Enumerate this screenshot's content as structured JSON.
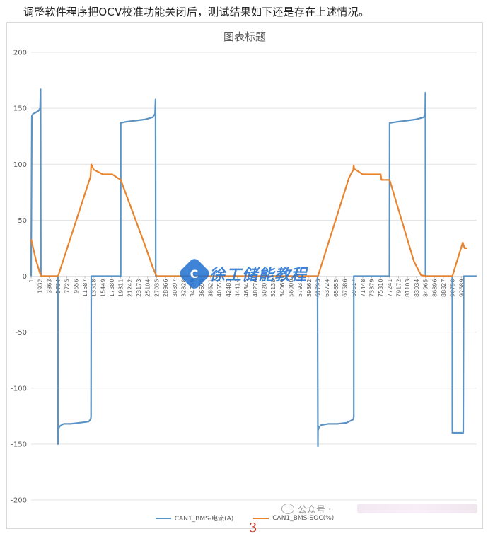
{
  "intro_text": "调整软件程序把OCV校准功能关闭后，测试结果如下还是存在上述情况。",
  "watermark": {
    "logo_glyph": "C",
    "text": "徐工储能教程"
  },
  "wechat": {
    "icon": "wechat-icon",
    "label": "公众号 ·"
  },
  "page_number": "3",
  "colors": {
    "current": "#5b93c4",
    "soc": "#e9842e",
    "grid": "#e3e3e3",
    "text": "#595959"
  },
  "chart_data": {
    "type": "line",
    "title": "图表标题",
    "ylim": [
      -200,
      200
    ],
    "yticks": [
      200,
      150,
      100,
      50,
      0,
      -50,
      -100,
      -150,
      -200
    ],
    "xlim": [
      1,
      96000
    ],
    "xtick_labels": [
      "1",
      "1932",
      "3863",
      "5794",
      "7725",
      "9656",
      "11587",
      "13518",
      "15449",
      "17380",
      "19311",
      "21242",
      "23173",
      "25104",
      "27035",
      "28966",
      "30897",
      "32828",
      "34759",
      "36690",
      "38621",
      "40552",
      "42483",
      "44414",
      "46345",
      "48276",
      "50207",
      "52138",
      "54069",
      "56000",
      "57931",
      "59862",
      "61793",
      "63724",
      "65655",
      "67586",
      "69517",
      "71448",
      "73379",
      "75310",
      "77241",
      "79172",
      "81103",
      "83034",
      "84965",
      "86896",
      "88827",
      "90758",
      "92689"
    ],
    "grid": true,
    "legend_position": "bottom",
    "series": [
      {
        "name": "CAN1_BMS-电流(A)",
        "color": "#5b93c4",
        "x": [
          1,
          150,
          400,
          900,
          1650,
          1930,
          2050,
          2100,
          5790,
          5800,
          5900,
          6200,
          7000,
          8500,
          10500,
          12400,
          12800,
          12900,
          12950,
          19300,
          19310,
          19400,
          20500,
          22500,
          24500,
          26200,
          26700,
          26800,
          26850,
          61700,
          61790,
          61800,
          62000,
          62500,
          64000,
          66000,
          68000,
          69400,
          69510,
          69520,
          77200,
          77240,
          77500,
          79000,
          81000,
          82800,
          84600,
          84900,
          84960,
          84970,
          90750,
          90760,
          93000,
          93100,
          93200,
          96000
        ],
        "y": [
          0,
          143,
          145,
          146,
          148,
          150,
          167,
          0,
          0,
          -150,
          -136,
          -134,
          -132,
          -132,
          -131,
          -130,
          -128,
          -126,
          0,
          0,
          137,
          137,
          138,
          139,
          140,
          142,
          145,
          158,
          0,
          0,
          -152,
          -138,
          -135,
          -133,
          -132,
          -132,
          -131,
          -128,
          -126,
          0,
          0,
          137,
          137,
          138,
          139,
          140,
          142,
          145,
          164,
          0,
          0,
          -140,
          -140,
          -140,
          0,
          0
        ]
      },
      {
        "name": "CAN1_BMS-SOC(%)",
        "color": "#e9842e",
        "x": [
          1,
          1000,
          2100,
          3863,
          5800,
          12800,
          12950,
          13518,
          13600,
          15449,
          17380,
          17500,
          19310,
          24500,
          26200,
          27035,
          28966,
          59862,
          61790,
          68500,
          69400,
          69517,
          69600,
          71448,
          73379,
          75310,
          75500,
          77240,
          82500,
          84000,
          84965,
          88000,
          90760,
          93000,
          93400,
          94000
        ],
        "y": [
          33,
          15,
          0,
          0,
          0,
          89,
          100,
          95,
          95,
          91,
          91,
          91,
          86,
          28,
          8,
          0,
          0,
          0,
          0,
          88,
          95,
          99,
          96,
          91,
          91,
          91,
          86,
          86,
          13,
          1,
          0,
          0,
          0,
          30,
          25,
          25
        ]
      }
    ]
  }
}
